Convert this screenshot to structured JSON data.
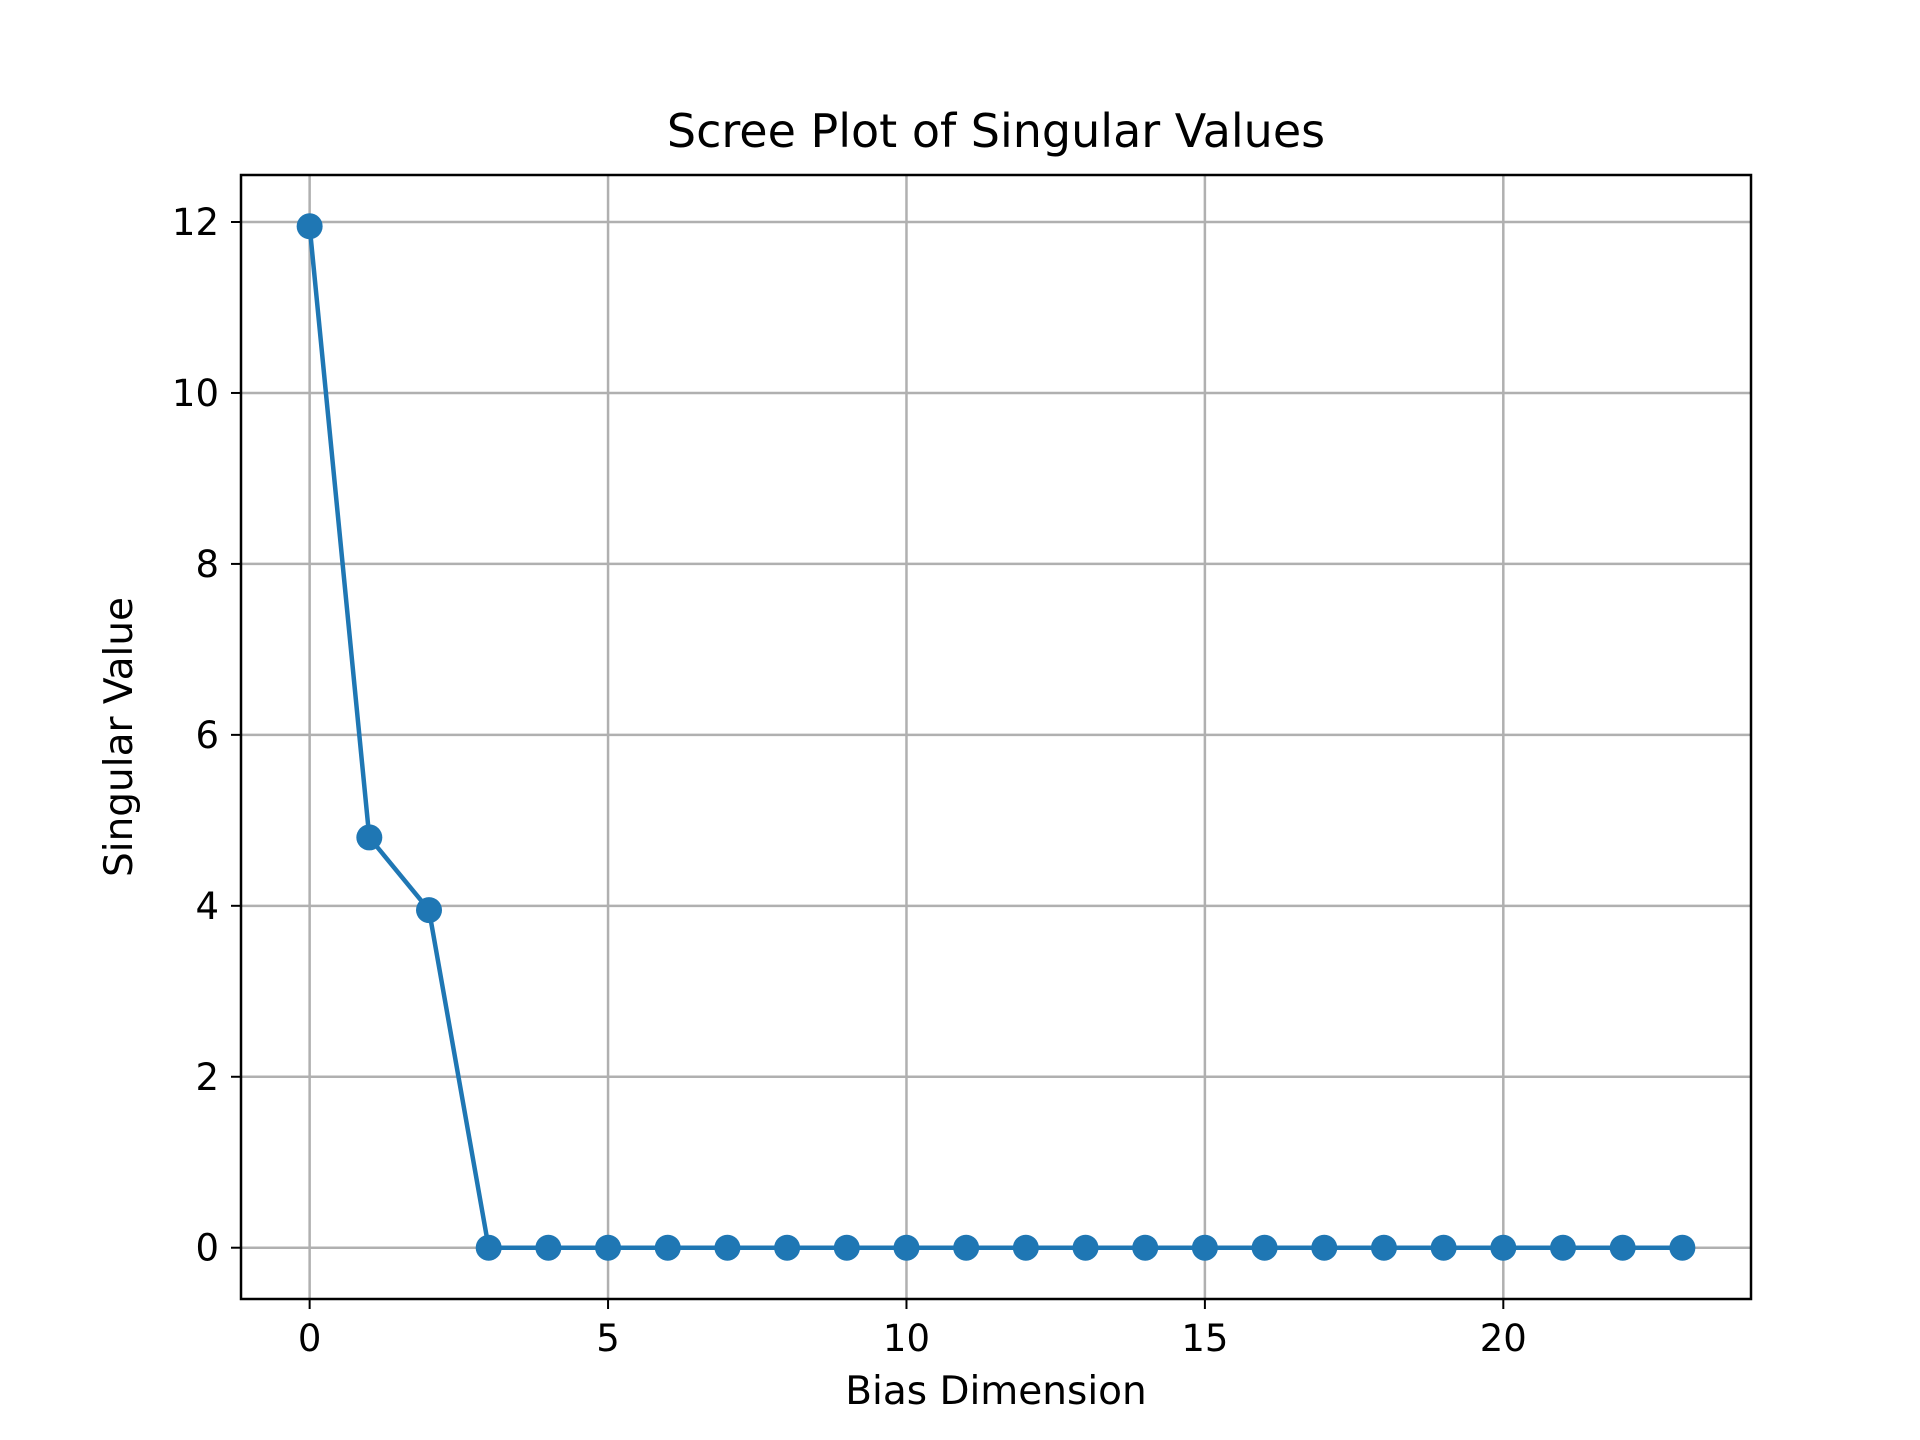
{
  "chart_data": {
    "type": "line",
    "title": "Scree Plot of Singular Values",
    "xlabel": "Bias Dimension",
    "ylabel": "Singular Value",
    "x": [
      0,
      1,
      2,
      3,
      4,
      5,
      6,
      7,
      8,
      9,
      10,
      11,
      12,
      13,
      14,
      15,
      16,
      17,
      18,
      19,
      20,
      21,
      22,
      23
    ],
    "series": [
      {
        "values": [
          11.95,
          4.8,
          3.95,
          0,
          0,
          0,
          0,
          0,
          0,
          0,
          0,
          0,
          0,
          0,
          0,
          0,
          0,
          0,
          0,
          0,
          0,
          0,
          0,
          0
        ],
        "color": "#1f77b4",
        "marker": "circle"
      }
    ],
    "xlim": [
      -1.15,
      24.15
    ],
    "ylim": [
      -0.6,
      12.55
    ],
    "xticks": [
      "0",
      "5",
      "10",
      "15",
      "20"
    ],
    "yticks": [
      "0",
      "2",
      "4",
      "6",
      "8",
      "10",
      "12"
    ],
    "grid": true
  }
}
